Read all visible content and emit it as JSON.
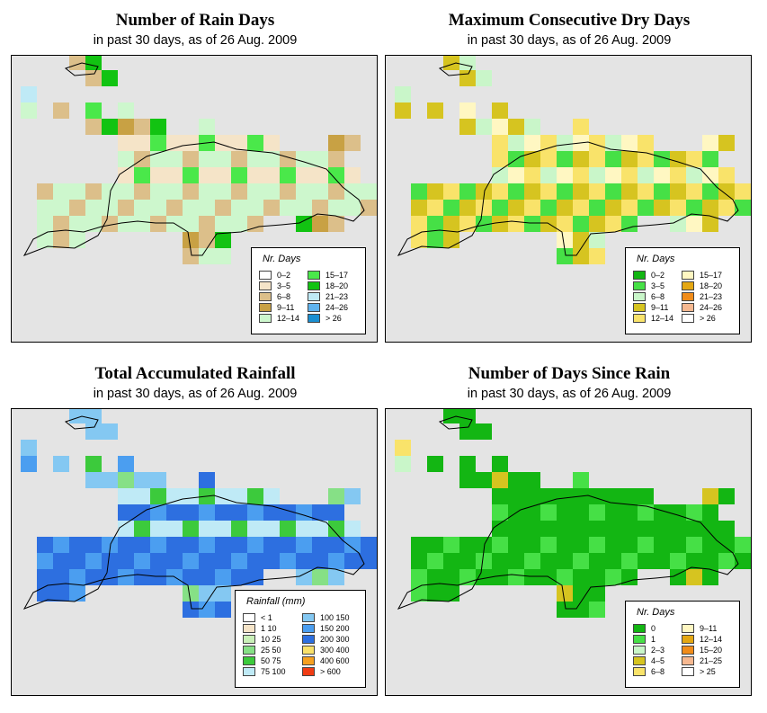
{
  "panels": [
    {
      "id": "rain_days",
      "title": "Number of Rain Days",
      "subtitle": "in past 30 days, as of  26 Aug. 2009",
      "legend": {
        "title": "Nr. Days",
        "items": [
          {
            "label": "0–2",
            "color": "#ffffff"
          },
          {
            "label": "3–5",
            "color": "#f5e4c8"
          },
          {
            "label": "6–8",
            "color": "#dcbf8a"
          },
          {
            "label": "9–11",
            "color": "#c8a144"
          },
          {
            "label": "12–14",
            "color": "#cdf7cd"
          },
          {
            "label": "15–17",
            "color": "#4ae84a"
          },
          {
            "label": "18–20",
            "color": "#12c312"
          },
          {
            "label": "21–23",
            "color": "#bfeaf6"
          },
          {
            "label": "24–26",
            "color": "#5fb3ee"
          },
          {
            "label": "> 26",
            "color": "#1b8fd1"
          }
        ]
      }
    },
    {
      "id": "dry_days",
      "title": "Maximum Consecutive Dry Days",
      "subtitle": "in past 30 days, as of  26 Aug. 2009",
      "legend": {
        "title": "Nr. Days",
        "items": [
          {
            "label": "0–2",
            "color": "#13b613"
          },
          {
            "label": "3–5",
            "color": "#46e046"
          },
          {
            "label": "6–8",
            "color": "#c9f6c9"
          },
          {
            "label": "9–11",
            "color": "#d6c420"
          },
          {
            "label": "12–14",
            "color": "#f9e36a"
          },
          {
            "label": "15–17",
            "color": "#fff7c2"
          },
          {
            "label": "18–20",
            "color": "#e4a712"
          },
          {
            "label": "21–23",
            "color": "#f08c1a"
          },
          {
            "label": "24–26",
            "color": "#f6b890"
          },
          {
            "label": "> 26",
            "color": "#ffffff"
          }
        ]
      }
    },
    {
      "id": "rainfall",
      "title": "Total Accumulated Rainfall",
      "subtitle": "in past 30 days, as of  26 Aug. 2009",
      "legend": {
        "title": "Rainfall (mm)",
        "items": [
          {
            "label": "< 1",
            "color": "#ffffff"
          },
          {
            "label": "1    10",
            "color": "#f5e4c8"
          },
          {
            "label": "10    25",
            "color": "#c9f0b8"
          },
          {
            "label": "25    50",
            "color": "#86e086"
          },
          {
            "label": "50    75",
            "color": "#3cca3c"
          },
          {
            "label": "75   100",
            "color": "#bfeaf6"
          },
          {
            "label": "100  150",
            "color": "#84c8f2"
          },
          {
            "label": "150  200",
            "color": "#4b9ef0"
          },
          {
            "label": "200  300",
            "color": "#2d6fe0"
          },
          {
            "label": "300  400",
            "color": "#f8e06a"
          },
          {
            "label": "400  600",
            "color": "#f5a020"
          },
          {
            "label": "> 600",
            "color": "#f03c14"
          }
        ]
      }
    },
    {
      "id": "days_since_rain",
      "title": "Number of Days Since Rain",
      "subtitle": "in past 30 days, as of  26 Aug. 2009",
      "legend": {
        "title": "Nr. Days",
        "items": [
          {
            "label": "0",
            "color": "#13b613"
          },
          {
            "label": "1",
            "color": "#46e046"
          },
          {
            "label": "2–3",
            "color": "#c9f6c9"
          },
          {
            "label": "4–5",
            "color": "#d6c420"
          },
          {
            "label": "6–8",
            "color": "#f9e36a"
          },
          {
            "label": "9–11",
            "color": "#fff7c2"
          },
          {
            "label": "12–14",
            "color": "#e4a712"
          },
          {
            "label": "15–20",
            "color": "#f08c1a"
          },
          {
            "label": "21–25",
            "color": "#f6b890"
          },
          {
            "label": "> 25",
            "color": "#ffffff"
          }
        ]
      }
    }
  ]
}
